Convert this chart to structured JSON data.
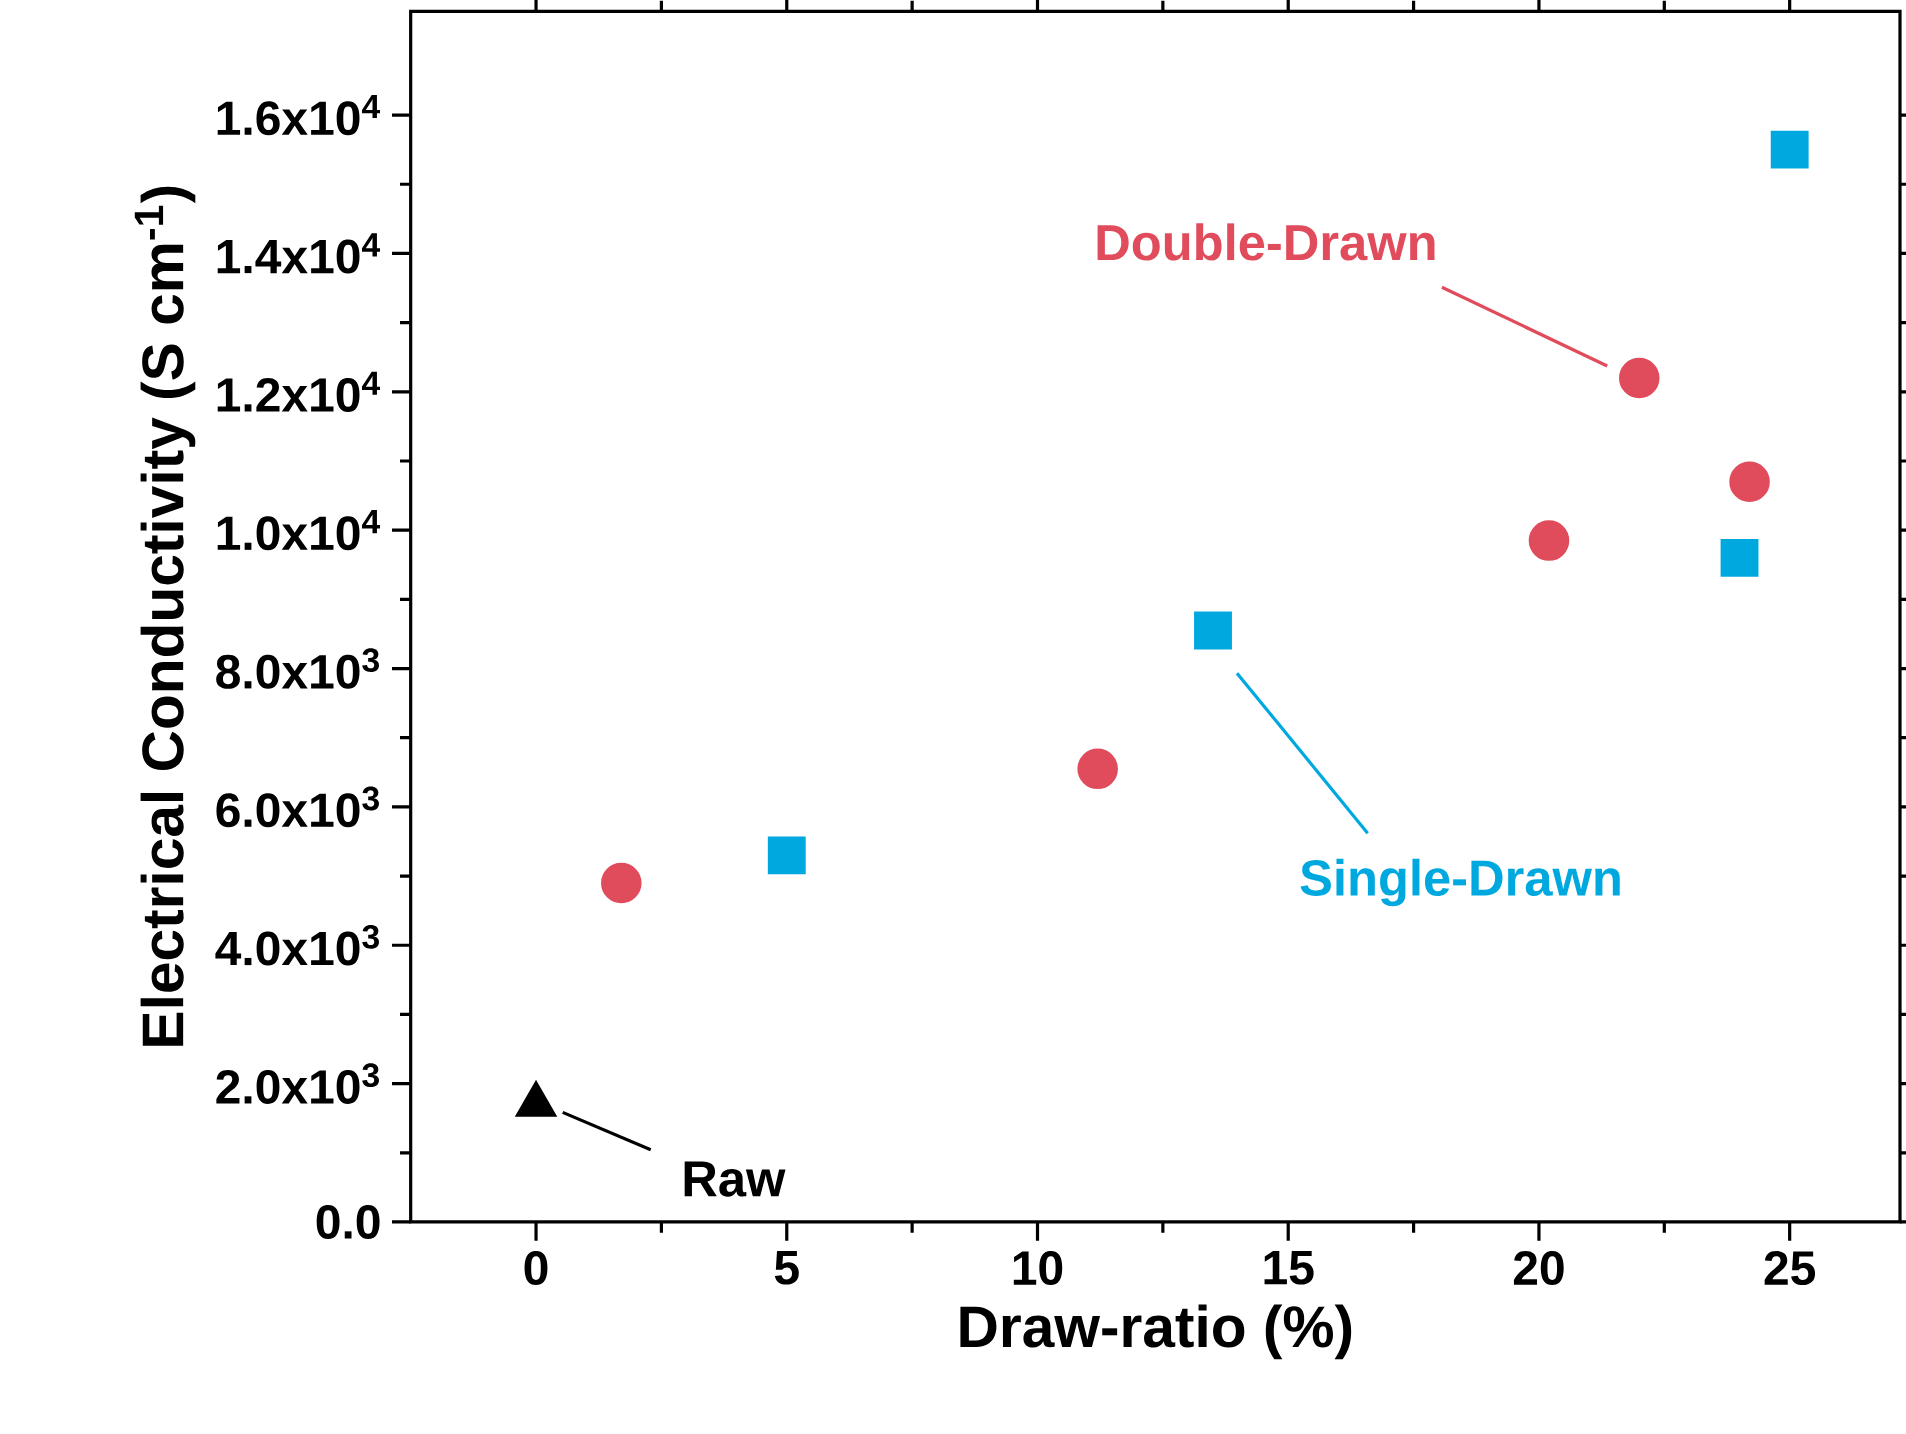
{
  "chart_data": {
    "type": "scatter",
    "xlabel": "Draw-ratio (%)",
    "ylabel": "Electrical Conductivity (S cm$^{-1}$)",
    "xlim": [
      -2.5,
      27.2
    ],
    "ylim": [
      0,
      17500
    ],
    "xticks": [
      0,
      5,
      10,
      15,
      20,
      25
    ],
    "yticks": [
      {
        "value": 0,
        "label": "0.0"
      },
      {
        "value": 2000,
        "label": "2.0x10$^{3}$"
      },
      {
        "value": 4000,
        "label": "4.0x10$^{3}$"
      },
      {
        "value": 6000,
        "label": "6.0x10$^{3}$"
      },
      {
        "value": 8000,
        "label": "8.0x10$^{3}$"
      },
      {
        "value": 10000,
        "label": "1.0x10$^{4}$"
      },
      {
        "value": 12000,
        "label": "1.2x10$^{4}$"
      },
      {
        "value": 14000,
        "label": "1.4x10$^{4}$"
      },
      {
        "value": 16000,
        "label": "1.6x10$^{4}$"
      }
    ],
    "series": [
      {
        "name": "Double-Drawn",
        "color": "#e04c5c",
        "marker": "circle",
        "x": [
          1.7,
          11.2,
          20.2,
          22.0,
          24.2
        ],
        "values": [
          4900,
          6550,
          9850,
          12200,
          10700
        ]
      },
      {
        "name": "Single-Drawn",
        "color": "#00a8e0",
        "marker": "square",
        "x": [
          5,
          13.5,
          24.0,
          25
        ],
        "values": [
          5300,
          8550,
          9600,
          15500
        ]
      },
      {
        "name": "Raw",
        "color": "#000000",
        "marker": "triangle",
        "x": [
          0
        ],
        "values": [
          1700
        ]
      }
    ]
  }
}
